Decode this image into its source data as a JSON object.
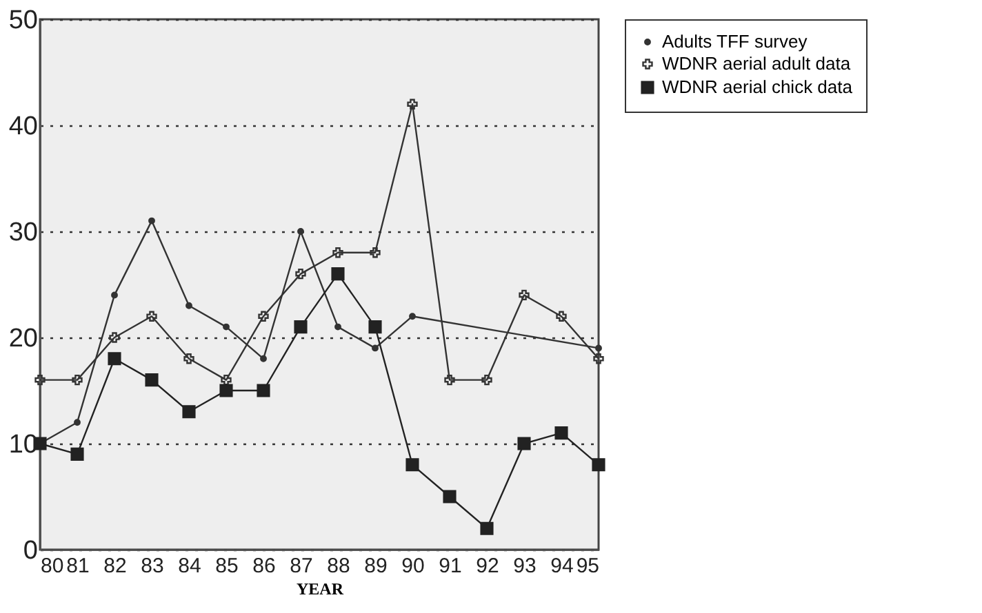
{
  "chart_data": {
    "type": "line",
    "xlabel": "YEAR",
    "x": [
      80,
      81,
      82,
      83,
      84,
      85,
      86,
      87,
      88,
      89,
      90,
      91,
      92,
      93,
      94,
      95
    ],
    "series": [
      {
        "name": "Adults TFF survey",
        "color": "#333333",
        "marker": "circle",
        "x": [
          80,
          81,
          82,
          83,
          84,
          85,
          86,
          87,
          88,
          89,
          90,
          95
        ],
        "values": [
          10,
          12,
          24,
          31,
          23,
          21,
          18,
          30,
          21,
          19,
          22,
          19
        ]
      },
      {
        "name": "WDNR aerial adult data",
        "color": "#333333",
        "marker": "cross",
        "values": [
          16,
          16,
          20,
          22,
          18,
          16,
          22,
          26,
          28,
          28,
          42,
          16,
          16,
          24,
          22,
          18
        ]
      },
      {
        "name": "WDNR aerial chick data",
        "color": "#222222",
        "marker": "square",
        "values": [
          10,
          9,
          18,
          16,
          13,
          15,
          15,
          21,
          26,
          21,
          8,
          5,
          2,
          10,
          11,
          8
        ]
      }
    ],
    "xlim": [
      80,
      95
    ],
    "xticks": [
      80,
      81,
      82,
      83,
      84,
      85,
      86,
      87,
      88,
      89,
      90,
      91,
      92,
      93,
      94,
      95
    ],
    "ylim": [
      0,
      50
    ],
    "yticks": [
      0,
      10,
      20,
      30,
      40,
      50
    ],
    "grid": "y",
    "legend": "right",
    "line_style": "solid"
  }
}
